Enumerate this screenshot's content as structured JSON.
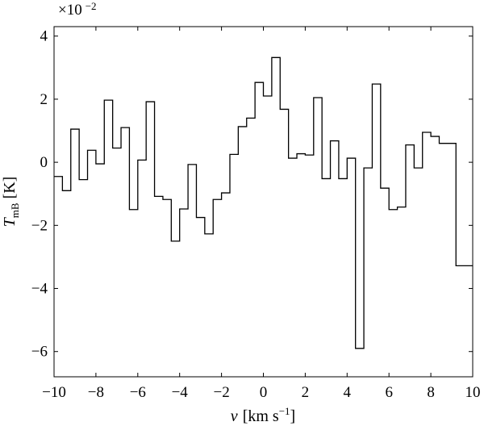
{
  "chart_data": {
    "type": "line",
    "style": "step histogram",
    "xlabel": {
      "var": "v",
      "unit": "[km s",
      "exp": "−1",
      "close": "]"
    },
    "ylabel": {
      "var": "T",
      "sub": "mB",
      "unit": "[K]"
    },
    "y_scale_label": {
      "base": "×10",
      "exp": "−2"
    },
    "xlim": [
      -10,
      10
    ],
    "ylim": [
      -6.8,
      4.3
    ],
    "xticks": [
      -10,
      -8,
      -6,
      -4,
      -2,
      0,
      2,
      4,
      6,
      8,
      10
    ],
    "xtick_labels": [
      "−10",
      "−8",
      "−6",
      "−4",
      "−2",
      "0",
      "2",
      "4",
      "6",
      "8",
      "10"
    ],
    "yticks": [
      -6,
      -4,
      -2,
      0,
      2,
      4
    ],
    "ytick_labels": [
      "−6",
      "−4",
      "−2",
      "0",
      "2",
      "4"
    ],
    "grid": false,
    "line_color": "#000000",
    "bin_width": 0.4,
    "x": [
      -10.0,
      -9.6,
      -9.2,
      -8.8,
      -8.4,
      -8.0,
      -7.6,
      -7.2,
      -6.8,
      -6.4,
      -6.0,
      -5.6,
      -5.2,
      -4.8,
      -4.4,
      -4.0,
      -3.6,
      -3.2,
      -2.8,
      -2.4,
      -2.0,
      -1.6,
      -1.2,
      -0.8,
      -0.4,
      0.0,
      0.4,
      0.8,
      1.2,
      1.6,
      2.0,
      2.4,
      2.8,
      3.2,
      3.6,
      4.0,
      4.4,
      4.8,
      5.2,
      5.6,
      6.0,
      6.4,
      6.8,
      7.2,
      7.6,
      8.0,
      8.4,
      8.8,
      9.2,
      9.6
    ],
    "values": [
      -0.45,
      -0.9,
      1.05,
      -0.55,
      0.38,
      -0.05,
      1.97,
      0.45,
      1.1,
      -1.5,
      0.07,
      1.92,
      -1.08,
      -1.18,
      -2.5,
      -1.48,
      -0.07,
      -1.75,
      -2.27,
      -1.18,
      -0.97,
      0.25,
      1.13,
      1.4,
      2.53,
      2.1,
      3.32,
      1.68,
      0.13,
      0.27,
      0.23,
      2.05,
      -0.52,
      0.68,
      -0.52,
      0.13,
      -5.9,
      -0.18,
      2.48,
      -0.82,
      -1.5,
      -1.42,
      0.55,
      -0.18,
      0.95,
      0.82,
      0.6,
      0.6,
      -3.28,
      -3.28
    ]
  }
}
